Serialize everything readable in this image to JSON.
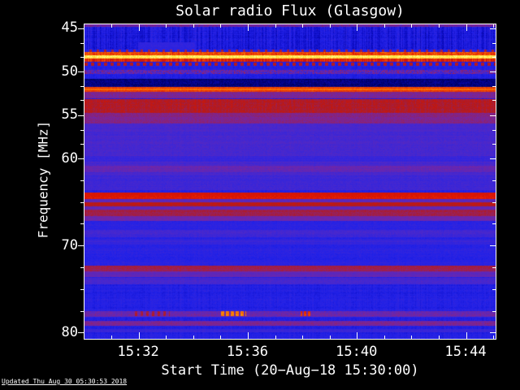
{
  "title": "Solar radio Flux (Glasgow)",
  "footer": "Updated Thu Aug 30 05:30:53 2018",
  "chart_data": {
    "type": "heatmap",
    "subtype": "solar-radio-spectrogram",
    "title": "Solar radio Flux (Glasgow)",
    "xlabel": "Start Time (20−Aug−18 15:30:00)",
    "ylabel": "Frequency [MHz]",
    "legend": "none",
    "grid": false,
    "x_axis": {
      "t_min": 0,
      "t_max": 15.07,
      "unit": "minutes after 15:30 UT",
      "major": [
        {
          "m": 2,
          "label": "15:32"
        },
        {
          "m": 6,
          "label": "15:36"
        },
        {
          "m": 10,
          "label": "15:40"
        },
        {
          "m": 14,
          "label": "15:44"
        }
      ],
      "minor": [
        1,
        3,
        4,
        5,
        7,
        8,
        9,
        11,
        12,
        13,
        15
      ]
    },
    "y_axis": {
      "f_min": 44.53,
      "f_max": 80.67,
      "unit": "MHz",
      "inverted": true,
      "major": [
        {
          "f": 45,
          "label": "45"
        },
        {
          "f": 50,
          "label": "50"
        },
        {
          "f": 55,
          "label": "55"
        },
        {
          "f": 60,
          "label": "60"
        },
        {
          "f": 70,
          "label": "70"
        },
        {
          "f": 80,
          "label": "80"
        }
      ],
      "minor": [
        46.7,
        48.3,
        51.7,
        53.3,
        56.7,
        58.3,
        62.5,
        65.0,
        67.5,
        72.5,
        75.0,
        77.5
      ]
    },
    "palette": [
      [
        0.0,
        "#000020"
      ],
      [
        0.1,
        "#000060"
      ],
      [
        0.2,
        "#0a0ac0"
      ],
      [
        0.3,
        "#2121e8"
      ],
      [
        0.4,
        "#4628cf"
      ],
      [
        0.5,
        "#7226a6"
      ],
      [
        0.58,
        "#96215f"
      ],
      [
        0.66,
        "#b51a1a"
      ],
      [
        0.74,
        "#e01500"
      ],
      [
        0.82,
        "#f35400"
      ],
      [
        0.9,
        "#ffa000"
      ],
      [
        0.96,
        "#ffec50"
      ],
      [
        1.0,
        "#ffffd8"
      ]
    ],
    "bands": [
      {
        "f0": 44.53,
        "f1": 80.67,
        "v": 0.3,
        "n": 0.05,
        "vn": 0.04
      },
      {
        "f0": 44.53,
        "f1": 47.45,
        "v": 0.27,
        "n": 0.07,
        "vn": 0.12
      },
      {
        "f0": 44.53,
        "f1": 44.85,
        "v": 0.5,
        "n": 0.12
      },
      {
        "f0": 46.55,
        "f1": 47.45,
        "v": 0.34,
        "n": 0.04,
        "x0": 1.95,
        "x1": 4.05
      },
      {
        "f0": 47.4,
        "f1": 47.66,
        "v": 0.6,
        "n": 0.1,
        "period": 9,
        "duty": 0.33
      },
      {
        "f0": 47.7,
        "f1": 48.05,
        "v": 0.8,
        "n": 0.09,
        "vn": 0.06
      },
      {
        "f0": 48.08,
        "f1": 48.42,
        "v": 0.96,
        "n": 0.04
      },
      {
        "f0": 48.45,
        "f1": 48.84,
        "v": 0.74,
        "n": 0.05,
        "vn": 0.14
      },
      {
        "f0": 48.88,
        "f1": 49.26,
        "v": 0.66,
        "n": 0.06,
        "period": 8,
        "duty": 0.4
      },
      {
        "f0": 49.8,
        "f1": 50.22,
        "v": 0.46,
        "n": 0.26,
        "vn": 0.08
      },
      {
        "f0": 50.78,
        "f1": 51.72,
        "v": 0.13,
        "n": 0.07
      },
      {
        "f0": 51.76,
        "f1": 52.24,
        "v": 0.8,
        "n": 0.05
      },
      {
        "f0": 51.92,
        "f1": 52.1,
        "v": 0.85,
        "n": 0.04
      },
      {
        "f0": 52.28,
        "f1": 53.04,
        "v": 0.52,
        "n": 0.07
      },
      {
        "f0": 53.08,
        "f1": 54.72,
        "v": 0.65,
        "n": 0.07,
        "vn": 0.05
      },
      {
        "f0": 54.72,
        "f1": 55.92,
        "v": 0.53,
        "n": 0.06
      },
      {
        "f0": 55.92,
        "f1": 63.6,
        "v": 0.4,
        "n": 0.05
      },
      {
        "f0": 59.7,
        "f1": 60.3,
        "v": 0.36,
        "n": 0.04
      },
      {
        "f0": 60.8,
        "f1": 61.55,
        "v": 0.47,
        "n": 0.06
      },
      {
        "f0": 61.9,
        "f1": 63.4,
        "v": 0.38,
        "n": 0.05
      },
      {
        "f0": 63.82,
        "f1": 64.62,
        "v": 0.74,
        "n": 0.05
      },
      {
        "f0": 64.62,
        "f1": 64.98,
        "v": 0.46,
        "n": 0.05
      },
      {
        "f0": 64.98,
        "f1": 65.45,
        "v": 0.66,
        "n": 0.05
      },
      {
        "f0": 65.45,
        "f1": 65.8,
        "v": 0.46,
        "n": 0.05
      },
      {
        "f0": 65.8,
        "f1": 66.58,
        "v": 0.61,
        "n": 0.06
      },
      {
        "f0": 66.58,
        "f1": 67.15,
        "v": 0.48,
        "n": 0.05
      },
      {
        "f0": 67.15,
        "f1": 72.2,
        "v": 0.32,
        "n": 0.05
      },
      {
        "f0": 68.2,
        "f1": 69.0,
        "v": 0.38,
        "n": 0.05
      },
      {
        "f0": 69.3,
        "f1": 69.85,
        "v": 0.36,
        "n": 0.04
      },
      {
        "f0": 72.25,
        "f1": 72.92,
        "v": 0.6,
        "n": 0.06
      },
      {
        "f0": 72.92,
        "f1": 73.58,
        "v": 0.46,
        "n": 0.05
      },
      {
        "f0": 73.7,
        "f1": 74.42,
        "v": 0.4,
        "n": 0.05
      },
      {
        "f0": 77.45,
        "f1": 78.12,
        "v": 0.48,
        "n": 0.09
      },
      {
        "f0": 77.48,
        "f1": 78.05,
        "v": 0.62,
        "n": 0.1,
        "period": 7,
        "duty": 0.4,
        "x0": 1.7,
        "x1": 3.1
      },
      {
        "f0": 77.45,
        "f1": 78.1,
        "v": 0.86,
        "n": 0.06,
        "period": 6,
        "duty": 0.55,
        "x0": 4.95,
        "x1": 5.9
      },
      {
        "f0": 77.48,
        "f1": 78.05,
        "v": 0.78,
        "n": 0.06,
        "period": 5,
        "duty": 0.5,
        "x0": 7.9,
        "x1": 8.25
      },
      {
        "f0": 78.58,
        "f1": 79.18,
        "v": 0.52,
        "n": 0.06
      },
      {
        "f0": 79.55,
        "f1": 79.95,
        "v": 0.37,
        "n": 0.05
      }
    ]
  }
}
